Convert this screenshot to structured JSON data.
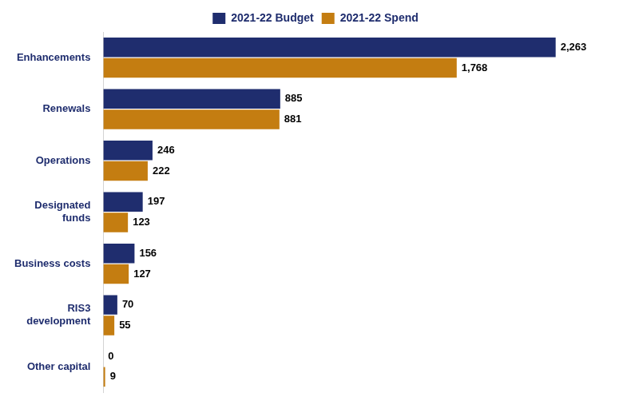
{
  "chart_data": {
    "type": "bar",
    "orientation": "horizontal",
    "categories": [
      "Enhancements",
      "Renewals",
      "Operations",
      "Designated\nfunds",
      "Business costs",
      "RIS3\ndevelopment",
      "Other capital"
    ],
    "series": [
      {
        "name": "2021-22 Budget",
        "color": "#1f2d6e",
        "values": [
          2263,
          885,
          246,
          197,
          156,
          70,
          0
        ],
        "value_labels": [
          "2,263",
          "885",
          "246",
          "197",
          "156",
          "70",
          "0"
        ]
      },
      {
        "name": "2021-22 Spend",
        "color": "#c47d11",
        "values": [
          1768,
          881,
          222,
          123,
          127,
          55,
          9
        ],
        "value_labels": [
          "1,768",
          "881",
          "222",
          "123",
          "127",
          "55",
          "9"
        ]
      }
    ],
    "xlim": [
      0,
      2600
    ],
    "data_labels": true,
    "tick_labels": "y",
    "grid": false,
    "legend": "top"
  }
}
